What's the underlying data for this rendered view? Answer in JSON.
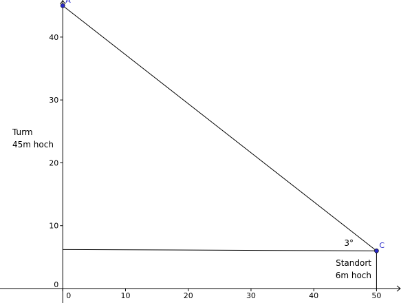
{
  "chart_data": {
    "type": "line",
    "xlim": [
      -10,
      53.9
    ],
    "ylim": [
      -2.3,
      45.9
    ],
    "xticks": [
      0,
      10,
      20,
      30,
      40,
      50
    ],
    "yticks": [
      0,
      10,
      20,
      30,
      40
    ],
    "grid": false,
    "series": [
      {
        "color": "#000000",
        "x": [
          0,
          50
        ],
        "values": [
          45,
          6
        ]
      },
      {
        "color": "#000000",
        "x": [
          0,
          50
        ],
        "values": [
          6.2,
          6
        ]
      },
      {
        "color": "#000000",
        "x": [
          50,
          50
        ],
        "values": [
          6,
          0
        ]
      }
    ],
    "points": {
      "labels": [
        "A",
        "C"
      ],
      "x": [
        0,
        50
      ],
      "values": [
        45,
        6
      ],
      "color": "#2828c8"
    },
    "annotations": [
      "Turm",
      "45m hoch",
      "Standort",
      "6m hoch",
      "3°"
    ]
  }
}
